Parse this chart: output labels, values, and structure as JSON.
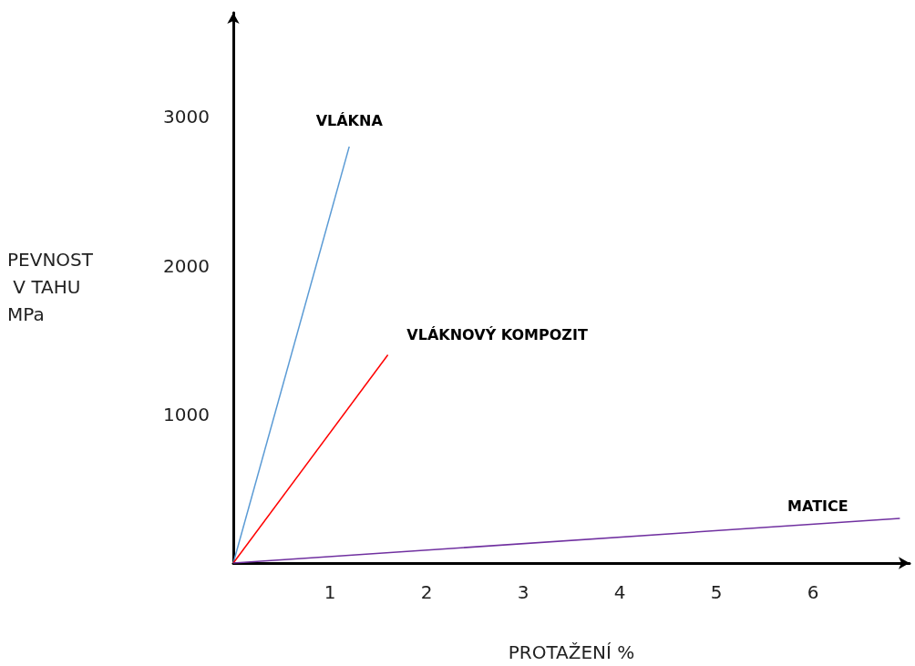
{
  "chart_data": {
    "type": "line",
    "xlabel": "PROTAŽENÍ %",
    "ylabel": "PEVNOST V TAHU MPa",
    "xlim": [
      0,
      7
    ],
    "xticks": [
      1,
      2,
      3,
      4,
      5,
      6
    ],
    "ylim": [
      0,
      3700
    ],
    "yticks": [
      1000,
      2000,
      3000
    ],
    "grid": false,
    "legend": false,
    "marker": "none",
    "line_style": "solid",
    "series": [
      {
        "name": "VLÁKNA",
        "color": "#5b9bd5",
        "x": [
          0,
          1.2
        ],
        "values": [
          0,
          2800
        ]
      },
      {
        "name": "VLÁKNOVÝ KOMPOZIT",
        "color": "#ff0000",
        "x": [
          0,
          1.6
        ],
        "values": [
          0,
          1400
        ]
      },
      {
        "name": "MATICE",
        "color": "#7030a0",
        "x": [
          0,
          6.9
        ],
        "values": [
          0,
          300
        ]
      }
    ]
  }
}
